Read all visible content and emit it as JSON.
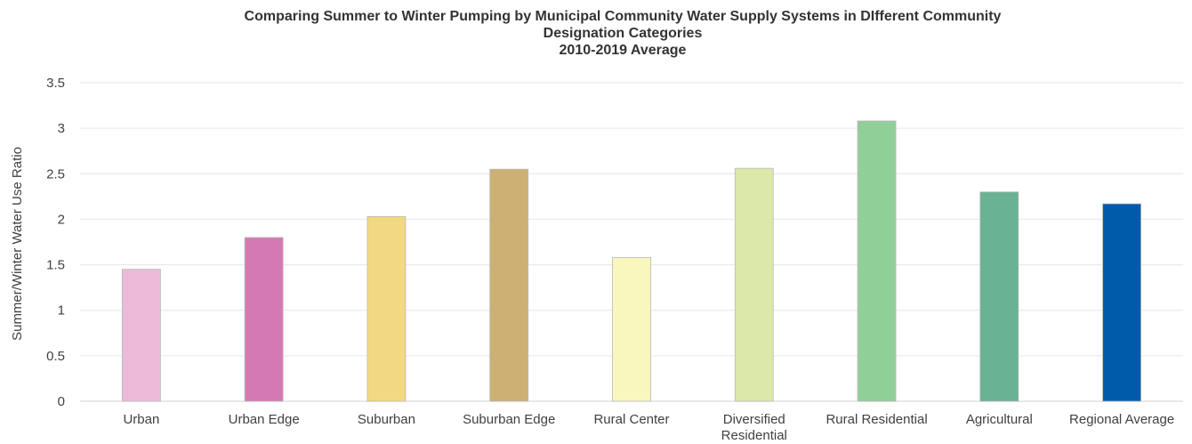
{
  "chart_data": {
    "type": "bar",
    "title": "Comparing Summer to Winter Pumping by Municipal Community Water Supply Systems in DIfferent Community Designation Categories",
    "title_lines": [
      "Comparing Summer to Winter Pumping by Municipal Community Water Supply Systems in DIfferent Community",
      "Designation Categories",
      "2010-2019 Average"
    ],
    "subtitle": "2010-2019 Average",
    "xlabel": "",
    "ylabel": "Summer/Winter Water Use Ratio",
    "ylim": [
      0,
      3.5
    ],
    "yticks": [
      0,
      0.5,
      1,
      1.5,
      2,
      2.5,
      3,
      3.5
    ],
    "ytick_labels": [
      "0",
      "0.5",
      "1",
      "1.5",
      "2",
      "2.5",
      "3",
      "3.5"
    ],
    "grid": true,
    "legend": "none",
    "categories": [
      "Urban",
      "Urban Edge",
      "Suburban",
      "Suburban Edge",
      "Rural Center",
      "Diversified Residential",
      "Rural Residential",
      "Agricultural",
      "Regional Average"
    ],
    "category_label_lines": [
      [
        "Urban"
      ],
      [
        "Urban Edge"
      ],
      [
        "Suburban"
      ],
      [
        "Suburban Edge"
      ],
      [
        "Rural Center"
      ],
      [
        "Diversified",
        "Residential"
      ],
      [
        "Rural Residential"
      ],
      [
        "Agricultural"
      ],
      [
        "Regional Average"
      ]
    ],
    "values": [
      1.45,
      1.8,
      2.03,
      2.55,
      1.58,
      2.56,
      3.08,
      2.3,
      2.17
    ],
    "colors": [
      "#ecbad9",
      "#d47ab3",
      "#f2d883",
      "#cdb073",
      "#f9f6be",
      "#dbe8aa",
      "#91cf98",
      "#6ab294",
      "#005bab"
    ]
  }
}
